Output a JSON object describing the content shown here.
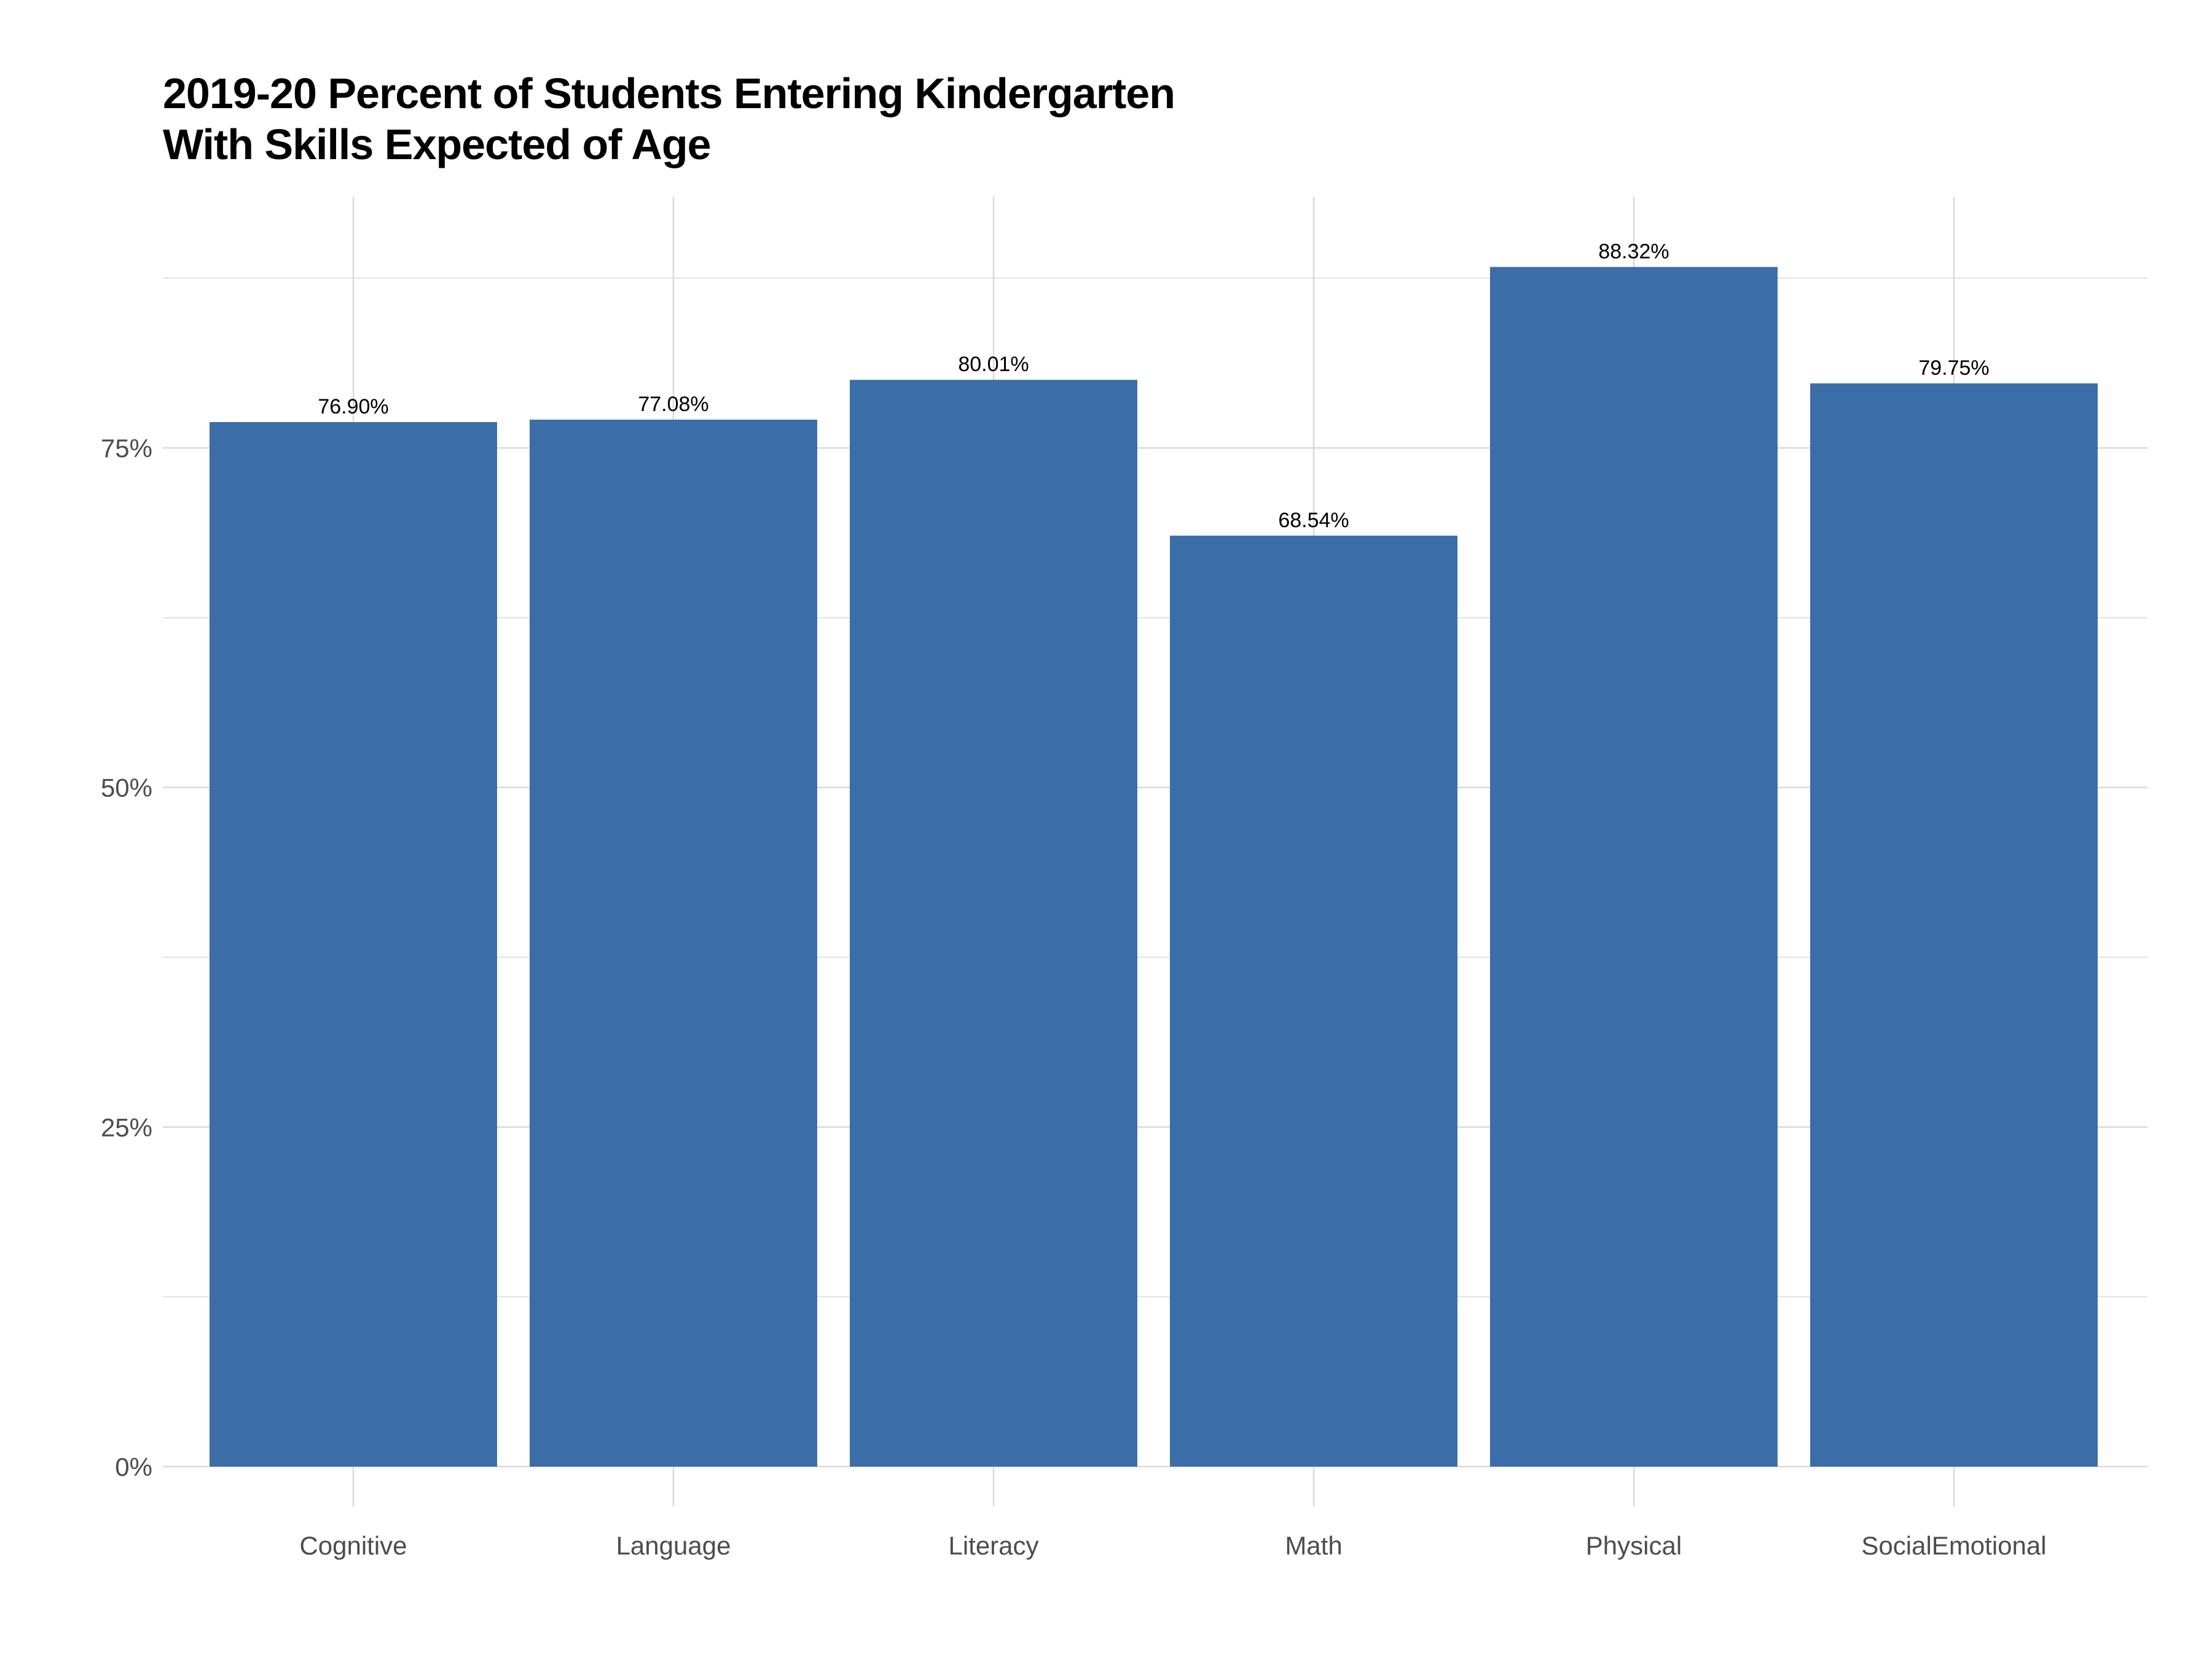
{
  "chart_data": {
    "type": "bar",
    "title_lines": [
      "2019-20 Percent of Students Entering Kindergarten",
      "With Skills Expected of Age"
    ],
    "xlabel": "",
    "ylabel": "",
    "categories": [
      "Cognitive",
      "Language",
      "Literacy",
      "Math",
      "Physical",
      "SocialEmotional"
    ],
    "values": [
      76.9,
      77.08,
      80.01,
      68.54,
      88.32,
      79.75
    ],
    "value_labels": [
      "76.90%",
      "77.08%",
      "80.01%",
      "68.54%",
      "88.32%",
      "79.75%"
    ],
    "ylim": [
      0,
      93.5
    ],
    "y_ticks": [
      0,
      25,
      50,
      75
    ],
    "y_tick_labels": [
      "0%",
      "25%",
      "50%",
      "75%"
    ],
    "y_minor_ticks": [
      12.5,
      37.5,
      62.5,
      87.5
    ],
    "grid": true,
    "legend": "none",
    "colors": {
      "bar": "#3B6EA8",
      "grid": "#D9D9D9",
      "tick_text": "#4D4D4D",
      "label_text": "#000000"
    }
  }
}
